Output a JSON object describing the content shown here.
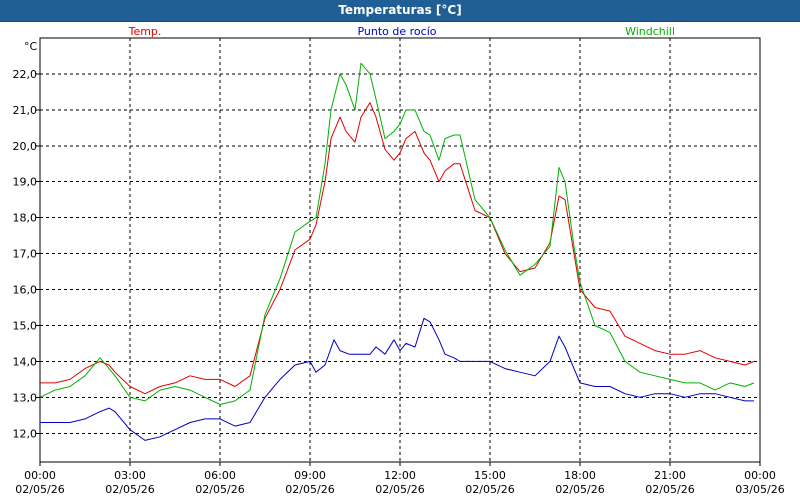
{
  "window": {
    "title": "Temperaturas [°C]"
  },
  "colors": {
    "titlebar": "#1f5f96",
    "temp": "#e00000",
    "dewpoint": "#0000c0",
    "windchill": "#00b000",
    "grid": "#000000"
  },
  "chart_data": {
    "type": "line",
    "title": "Temperaturas [°C]",
    "ylabel": "°C",
    "ylim": [
      11.2,
      23.0
    ],
    "yticks": [
      "12,0",
      "13,0",
      "14,0",
      "15,0",
      "16,0",
      "17,0",
      "18,0",
      "19,0",
      "20,0",
      "21,0",
      "22,0"
    ],
    "ytick_values": [
      12,
      13,
      14,
      15,
      16,
      17,
      18,
      19,
      20,
      21,
      22
    ],
    "xlim_hours": [
      0,
      24
    ],
    "xticks": [
      {
        "time": "00:00",
        "date": "02/05/26"
      },
      {
        "time": "03:00",
        "date": "02/05/26"
      },
      {
        "time": "06:00",
        "date": "02/05/26"
      },
      {
        "time": "09:00",
        "date": "02/05/26"
      },
      {
        "time": "12:00",
        "date": "02/05/26"
      },
      {
        "time": "15:00",
        "date": "02/05/26"
      },
      {
        "time": "18:00",
        "date": "02/05/26"
      },
      {
        "time": "21:00",
        "date": "02/05/26"
      },
      {
        "time": "00:00",
        "date": "03/05/26"
      }
    ],
    "grid": true,
    "legend_position": "top",
    "series": [
      {
        "name": "Temp.",
        "color": "#e00000",
        "x": [
          0,
          0.5,
          1,
          1.5,
          2,
          2.3,
          2.5,
          3,
          3.5,
          4,
          4.5,
          5,
          5.5,
          6,
          6.5,
          7,
          7.5,
          8,
          8.5,
          9,
          9.2,
          9.5,
          9.7,
          10,
          10.2,
          10.5,
          10.7,
          11,
          11.2,
          11.5,
          11.8,
          12,
          12.2,
          12.5,
          12.8,
          13,
          13.3,
          13.5,
          13.8,
          14,
          14.5,
          15,
          15.5,
          16,
          16.5,
          17,
          17.3,
          17.5,
          17.8,
          18,
          18.5,
          19,
          19.5,
          20,
          20.5,
          21,
          21.5,
          22,
          22.5,
          23,
          23.5,
          23.8
        ],
        "values": [
          13.4,
          13.4,
          13.5,
          13.8,
          14.0,
          13.9,
          13.7,
          13.3,
          13.1,
          13.3,
          13.4,
          13.6,
          13.5,
          13.5,
          13.3,
          13.6,
          15.2,
          16.0,
          17.1,
          17.4,
          17.8,
          19.0,
          20.2,
          20.8,
          20.4,
          20.1,
          20.8,
          21.2,
          20.8,
          19.9,
          19.6,
          19.8,
          20.2,
          20.4,
          19.8,
          19.6,
          19.0,
          19.3,
          19.5,
          19.5,
          18.2,
          18.0,
          17.0,
          16.5,
          16.6,
          17.3,
          18.6,
          18.5,
          17.0,
          16.0,
          15.5,
          15.4,
          14.7,
          14.5,
          14.3,
          14.2,
          14.2,
          14.3,
          14.1,
          14.0,
          13.9,
          14.0
        ]
      },
      {
        "name": "Punto de rocío",
        "color": "#0000c0",
        "x": [
          0,
          0.5,
          1,
          1.5,
          2,
          2.3,
          2.5,
          3,
          3.5,
          4,
          4.5,
          5,
          5.5,
          6,
          6.5,
          7,
          7.5,
          8,
          8.5,
          9,
          9.2,
          9.5,
          9.8,
          10,
          10.3,
          10.5,
          10.8,
          11,
          11.2,
          11.5,
          11.8,
          12,
          12.2,
          12.5,
          12.8,
          13,
          13.3,
          13.5,
          13.8,
          14,
          14.5,
          15,
          15.5,
          16,
          16.5,
          17,
          17.3,
          17.5,
          17.8,
          18,
          18.5,
          19,
          19.5,
          20,
          20.5,
          21,
          21.5,
          22,
          22.5,
          23,
          23.5,
          23.8
        ],
        "values": [
          12.3,
          12.3,
          12.3,
          12.4,
          12.6,
          12.7,
          12.6,
          12.1,
          11.8,
          11.9,
          12.1,
          12.3,
          12.4,
          12.4,
          12.2,
          12.3,
          13.0,
          13.5,
          13.9,
          14.0,
          13.7,
          13.9,
          14.6,
          14.3,
          14.2,
          14.2,
          14.2,
          14.2,
          14.4,
          14.2,
          14.6,
          14.3,
          14.5,
          14.4,
          15.2,
          15.1,
          14.6,
          14.2,
          14.1,
          14.0,
          14.0,
          14.0,
          13.8,
          13.7,
          13.6,
          14.0,
          14.7,
          14.4,
          13.8,
          13.4,
          13.3,
          13.3,
          13.1,
          13.0,
          13.1,
          13.1,
          13.0,
          13.1,
          13.1,
          13.0,
          12.9,
          12.9
        ]
      },
      {
        "name": "Windchill",
        "color": "#00b000",
        "x": [
          0,
          0.5,
          1,
          1.5,
          2,
          2.3,
          2.5,
          3,
          3.5,
          4,
          4.5,
          5,
          5.5,
          6,
          6.5,
          7,
          7.5,
          8,
          8.5,
          9,
          9.2,
          9.5,
          9.7,
          10,
          10.2,
          10.5,
          10.7,
          11,
          11.2,
          11.5,
          11.8,
          12,
          12.2,
          12.5,
          12.8,
          13,
          13.3,
          13.5,
          13.8,
          14,
          14.5,
          15,
          15.5,
          16,
          16.5,
          17,
          17.3,
          17.5,
          17.8,
          18,
          18.5,
          19,
          19.5,
          20,
          20.5,
          21,
          21.5,
          22,
          22.5,
          23,
          23.5,
          23.8
        ],
        "values": [
          13.0,
          13.2,
          13.3,
          13.6,
          14.1,
          13.8,
          13.6,
          13.0,
          12.9,
          13.2,
          13.3,
          13.2,
          13.0,
          12.8,
          12.9,
          13.2,
          15.3,
          16.3,
          17.6,
          17.9,
          18.0,
          19.5,
          21.0,
          22.0,
          21.7,
          21.0,
          22.3,
          22.0,
          21.3,
          20.2,
          20.4,
          20.6,
          21.0,
          21.0,
          20.4,
          20.3,
          19.6,
          20.2,
          20.3,
          20.3,
          18.5,
          18.0,
          17.1,
          16.4,
          16.7,
          17.2,
          19.4,
          19.0,
          17.2,
          16.2,
          15.0,
          14.8,
          14.0,
          13.7,
          13.6,
          13.5,
          13.4,
          13.4,
          13.2,
          13.4,
          13.3,
          13.4
        ]
      }
    ]
  }
}
